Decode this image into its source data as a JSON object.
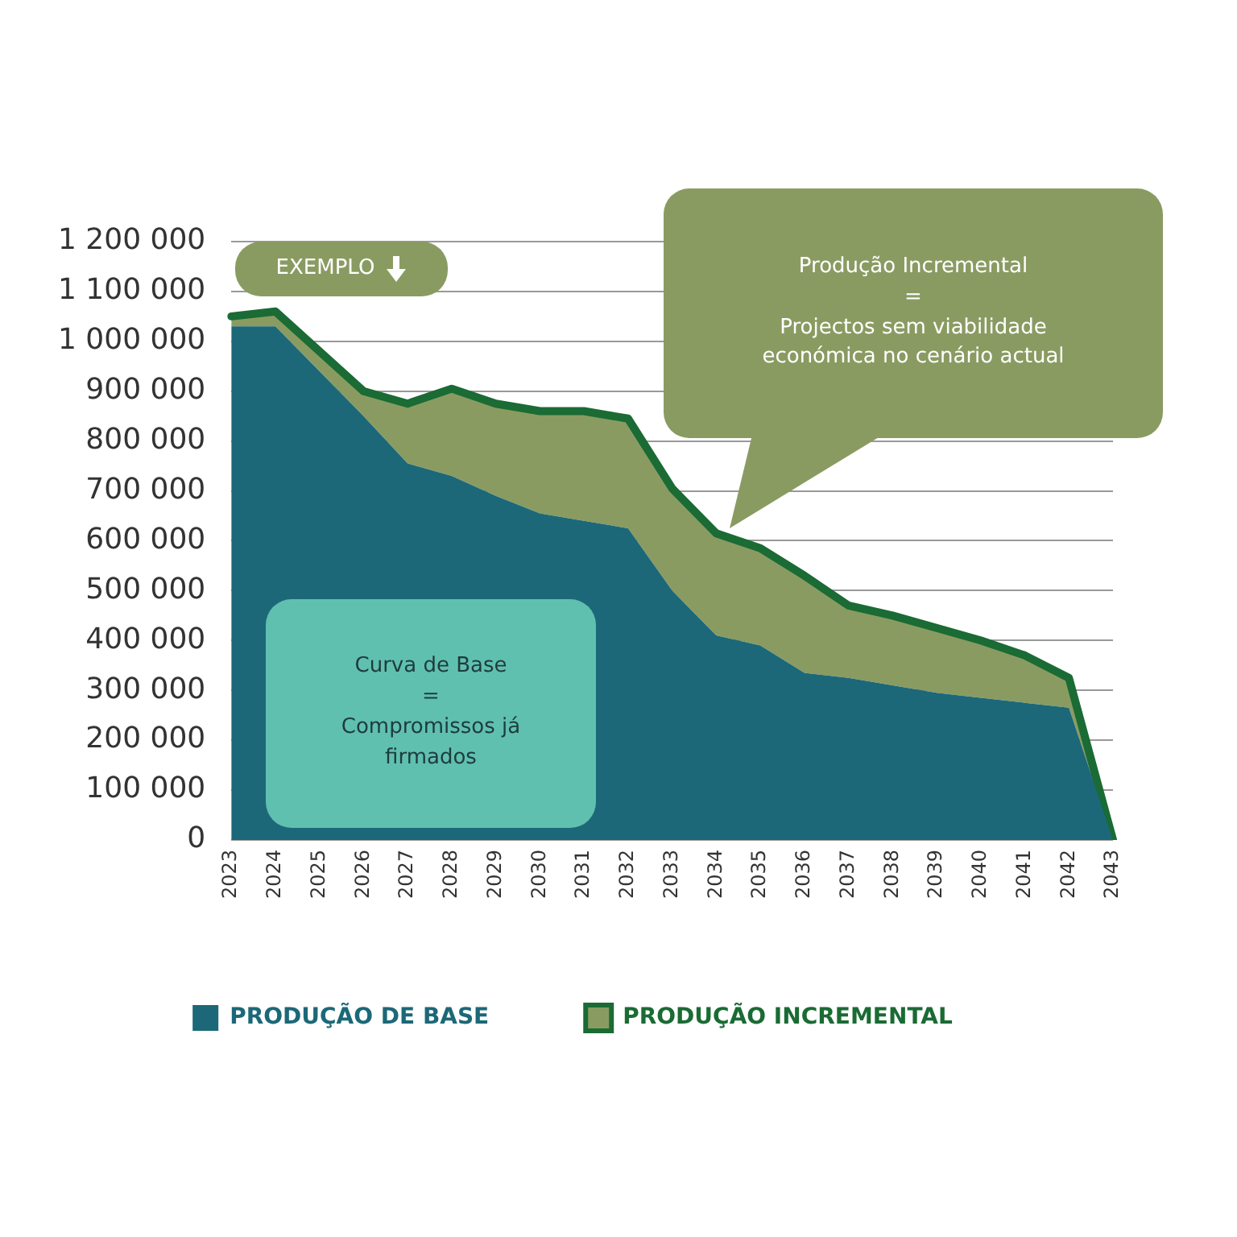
{
  "chart_data": {
    "type": "area",
    "stacked": true,
    "categories": [
      "2023",
      "2024",
      "2025",
      "2026",
      "2027",
      "2028",
      "2029",
      "2030",
      "2031",
      "2032",
      "2033",
      "2034",
      "2035",
      "2036",
      "2037",
      "2038",
      "2039",
      "2040",
      "2041",
      "2042",
      "2043"
    ],
    "series": [
      {
        "name": "PRODUÇÃO DE BASE",
        "color": "#1c6878",
        "values": [
          1030000,
          1030000,
          940000,
          850000,
          755000,
          730000,
          690000,
          655000,
          640000,
          625000,
          500000,
          410000,
          390000,
          335000,
          325000,
          310000,
          295000,
          285000,
          275000,
          265000,
          0
        ]
      },
      {
        "name": "PRODUÇÃO INCREMENTAL",
        "color": "#8a9b62",
        "values": [
          20000,
          30000,
          40000,
          50000,
          120000,
          175000,
          185000,
          205000,
          220000,
          220000,
          205000,
          205000,
          195000,
          195000,
          145000,
          140000,
          130000,
          115000,
          95000,
          60000,
          0
        ]
      }
    ],
    "ylim": [
      0,
      1200000
    ],
    "yticks": [
      {
        "value": 0,
        "label": "0"
      },
      {
        "value": 100000,
        "label": "100 000"
      },
      {
        "value": 200000,
        "label": "200 000"
      },
      {
        "value": 300000,
        "label": "300 000"
      },
      {
        "value": 400000,
        "label": "400 000"
      },
      {
        "value": 500000,
        "label": "500 000"
      },
      {
        "value": 600000,
        "label": "600 000"
      },
      {
        "value": 700000,
        "label": "700 000"
      },
      {
        "value": 800000,
        "label": "800 000"
      },
      {
        "value": 900000,
        "label": "900 000"
      },
      {
        "value": 1000000,
        "label": "1 000 000"
      },
      {
        "value": 1100000,
        "label": "1 100 000"
      },
      {
        "value": 1200000,
        "label": "1 200 000"
      }
    ],
    "grid": "y",
    "legend": "bottom",
    "annotations": [
      "EXEMPLO",
      "Produção Incremental\n=\nProjectos sem viabilidade económica no cenário actual",
      "Curva de Base\n=\nCompromissos já firmados"
    ]
  }
}
